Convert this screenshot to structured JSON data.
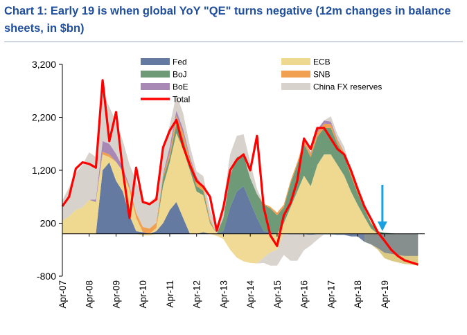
{
  "title": "Chart 1: Early 19 is when global YoY \"QE\" turns negative (12m changes in balance sheets, in $bn)",
  "colors": {
    "Fed": "#647aa0",
    "ECB": "#efd890",
    "BoJ": "#6f9a78",
    "SNB": "#f0a050",
    "BoE": "#a888b4",
    "China FX reserves": "#d8d2cc",
    "Total": "#ff0000",
    "arrow": "#1aa0e0",
    "olive": "#b8a860"
  },
  "chart_data": {
    "type": "area",
    "title": "Chart 1: Early 19 is when global YoY \"QE\" turns negative (12m changes in balance sheets, in $bn)",
    "xlabel": "",
    "ylabel": "",
    "ylim": [
      -800,
      3200
    ],
    "yticks": [
      -800,
      200,
      1200,
      2200,
      3200
    ],
    "ytick_labels": [
      "-800",
      "200",
      "1,200",
      "2,200",
      "3,200"
    ],
    "xlim": [
      2007.25,
      2020.75
    ],
    "xticks": [
      2007.25,
      2008.25,
      2009.25,
      2010.25,
      2011.25,
      2012.25,
      2013.25,
      2014.25,
      2015.25,
      2016.25,
      2017.25,
      2018.25,
      2019.25
    ],
    "xtick_labels": [
      "Apr-07",
      "Apr-08",
      "Apr-09",
      "Apr-10",
      "Apr-11",
      "Apr-12",
      "Apr-13",
      "Apr-14",
      "Apr-15",
      "Apr-16",
      "Apr-17",
      "Apr-18",
      "Apr-19"
    ],
    "legend": [
      "Fed",
      "ECB",
      "BoJ",
      "SNB",
      "BoE",
      "China FX reserves",
      "Total"
    ],
    "legend_position": "top",
    "stacked": true,
    "x": [
      2007.25,
      2007.5,
      2007.75,
      2008.0,
      2008.25,
      2008.5,
      2008.75,
      2009.0,
      2009.25,
      2009.5,
      2009.75,
      2010.0,
      2010.25,
      2010.5,
      2010.75,
      2011.0,
      2011.25,
      2011.5,
      2011.75,
      2012.0,
      2012.25,
      2012.5,
      2012.75,
      2013.0,
      2013.25,
      2013.5,
      2013.75,
      2014.0,
      2014.25,
      2014.5,
      2014.75,
      2015.0,
      2015.25,
      2015.5,
      2015.75,
      2016.0,
      2016.25,
      2016.5,
      2016.75,
      2017.0,
      2017.25,
      2017.5,
      2017.75,
      2018.0,
      2018.25,
      2018.5,
      2018.75,
      2019.0,
      2019.25,
      2019.5,
      2019.75,
      2020.0,
      2020.25,
      2020.5
    ],
    "series": [
      {
        "name": "Fed",
        "values": [
          0,
          0,
          0,
          0,
          0,
          0,
          1200,
          1350,
          1000,
          800,
          350,
          50,
          30,
          0,
          50,
          200,
          450,
          600,
          300,
          0,
          0,
          30,
          0,
          0,
          50,
          500,
          800,
          900,
          600,
          300,
          50,
          30,
          0,
          0,
          -10,
          -10,
          -10,
          -20,
          -10,
          -10,
          -10,
          -20,
          -20,
          -50,
          -50,
          -150,
          -200,
          -270,
          -360,
          -380,
          -400,
          -420,
          -420,
          -420
        ]
      },
      {
        "name": "ECB",
        "values": [
          250,
          330,
          450,
          500,
          640,
          600,
          300,
          100,
          360,
          380,
          480,
          250,
          -30,
          -30,
          60,
          700,
          900,
          1300,
          1300,
          1200,
          800,
          700,
          200,
          -40,
          -100,
          -300,
          -450,
          -520,
          -550,
          -560,
          -450,
          -350,
          -300,
          200,
          500,
          800,
          1100,
          900,
          1300,
          1500,
          1500,
          1300,
          1100,
          800,
          550,
          320,
          100,
          -30,
          -100,
          -130,
          -140,
          -150,
          -160,
          -180
        ]
      },
      {
        "name": "BoJ",
        "values": [
          0,
          0,
          0,
          0,
          0,
          0,
          0,
          0,
          0,
          0,
          0,
          0,
          0,
          0,
          0,
          150,
          100,
          180,
          200,
          130,
          100,
          80,
          30,
          0,
          250,
          600,
          650,
          580,
          450,
          450,
          500,
          450,
          350,
          300,
          450,
          500,
          600,
          550,
          530,
          500,
          500,
          400,
          380,
          300,
          220,
          150,
          100,
          50,
          20,
          10,
          0,
          0,
          0,
          0
        ]
      },
      {
        "name": "SNB",
        "values": [
          0,
          0,
          0,
          0,
          0,
          0,
          50,
          50,
          0,
          0,
          50,
          100,
          100,
          100,
          100,
          50,
          80,
          150,
          100,
          80,
          150,
          80,
          50,
          0,
          0,
          0,
          0,
          0,
          0,
          0,
          20,
          30,
          50,
          50,
          50,
          50,
          60,
          70,
          80,
          80,
          70,
          60,
          50,
          40,
          30,
          20,
          10,
          0,
          0,
          0,
          0,
          0,
          0,
          0
        ]
      },
      {
        "name": "BoE",
        "values": [
          0,
          0,
          0,
          0,
          0,
          50,
          200,
          200,
          150,
          80,
          30,
          0,
          0,
          0,
          0,
          30,
          120,
          100,
          80,
          50,
          30,
          0,
          0,
          0,
          0,
          0,
          0,
          0,
          0,
          0,
          0,
          0,
          0,
          0,
          0,
          0,
          0,
          20,
          60,
          60,
          50,
          20,
          10,
          0,
          0,
          0,
          0,
          0,
          0,
          0,
          0,
          0,
          0,
          0
        ]
      },
      {
        "name": "China FX reserves",
        "values": [
          380,
          550,
          700,
          800,
          900,
          800,
          900,
          700,
          600,
          500,
          400,
          600,
          500,
          500,
          500,
          500,
          400,
          300,
          300,
          200,
          100,
          200,
          180,
          100,
          300,
          400,
          400,
          400,
          300,
          100,
          -100,
          -250,
          -300,
          -400,
          -500,
          -500,
          -300,
          -200,
          -100,
          0,
          100,
          100,
          100,
          50,
          0,
          0,
          0,
          0,
          0,
          0,
          0,
          0,
          0,
          0
        ]
      },
      {
        "name": "Total",
        "values": [
          520,
          700,
          1230,
          1350,
          1320,
          1250,
          2900,
          1750,
          2300,
          1200,
          300,
          1250,
          600,
          560,
          650,
          1630,
          1950,
          2150,
          1650,
          1300,
          1000,
          890,
          700,
          60,
          500,
          1200,
          1400,
          1500,
          1200,
          1850,
          500,
          -30,
          -230,
          350,
          580,
          1000,
          1800,
          1600,
          2000,
          2000,
          1800,
          1600,
          1500,
          1200,
          850,
          520,
          280,
          30,
          -130,
          -300,
          -420,
          -500,
          -540,
          -580
        ]
      }
    ]
  }
}
